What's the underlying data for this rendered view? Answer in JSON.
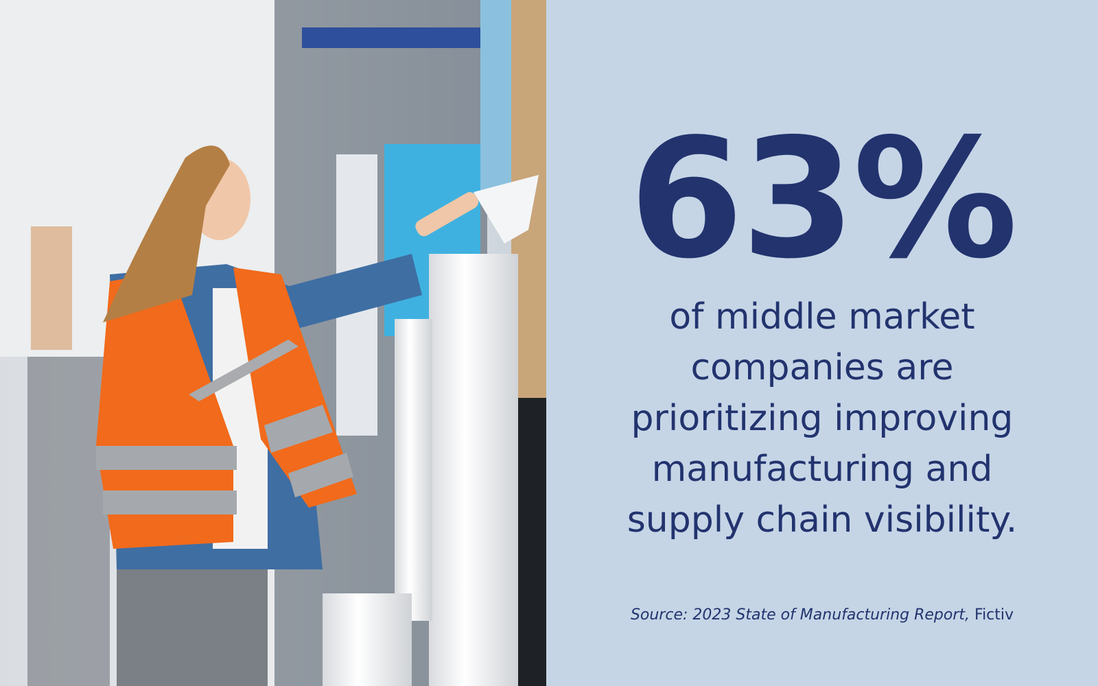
{
  "stat": "63%",
  "description": [
    "of middle market",
    "companies are",
    "prioritizing improving",
    "manufacturing and",
    "supply chain visibility."
  ],
  "source": {
    "citation": "Source: 2023 State of Manufacturing Report,",
    "publisher": "Fictiv"
  }
}
